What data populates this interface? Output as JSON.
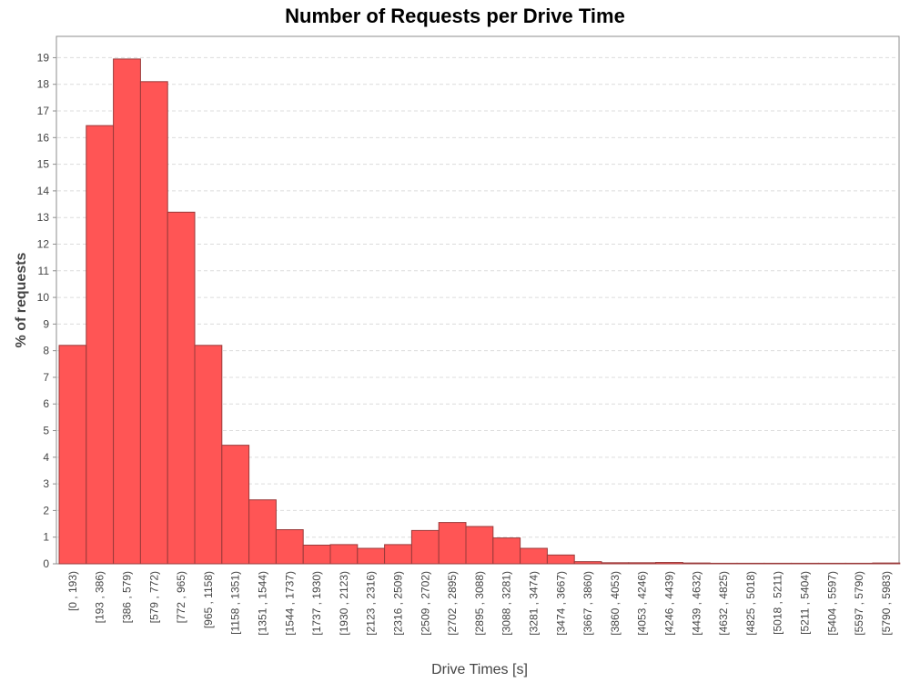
{
  "chart_data": {
    "type": "bar",
    "title": "Number of Requests per Drive Time",
    "xlabel": "Drive Times [s]",
    "ylabel": "% of requests",
    "ylim": [
      0,
      19.8
    ],
    "yticks": [
      0,
      1,
      2,
      3,
      4,
      5,
      6,
      7,
      8,
      9,
      10,
      11,
      12,
      13,
      14,
      15,
      16,
      17,
      18,
      19
    ],
    "grid": true,
    "legend": "none",
    "bar_color": "#ff5555",
    "bar_edge_color": "#9a3a3a",
    "categories": [
      "[0 , 193)",
      "[193 , 386)",
      "[386 , 579)",
      "[579 , 772)",
      "[772 , 965)",
      "[965 , 1158)",
      "[1158 , 1351)",
      "[1351 , 1544)",
      "[1544 , 1737)",
      "[1737 , 1930)",
      "[1930 , 2123)",
      "[2123 , 2316)",
      "[2316 , 2509)",
      "[2509 , 2702)",
      "[2702 , 2895)",
      "[2895 , 3088)",
      "[3088 , 3281)",
      "[3281 , 3474)",
      "[3474 , 3667)",
      "[3667 , 3860)",
      "[3860 , 4053)",
      "[4053 , 4246)",
      "[4246 , 4439)",
      "[4439 , 4632)",
      "[4632 , 4825)",
      "[4825 , 5018)",
      "[5018 , 5211)",
      "[5211 , 5404)",
      "[5404 , 5597)",
      "[5597 , 5790)",
      "[5790 , 5983)"
    ],
    "values": [
      8.2,
      16.45,
      18.95,
      18.1,
      13.2,
      8.2,
      4.45,
      2.4,
      1.28,
      0.7,
      0.72,
      0.58,
      0.72,
      1.25,
      1.55,
      1.4,
      0.97,
      0.58,
      0.33,
      0.08,
      0.04,
      0.04,
      0.05,
      0.03,
      0.02,
      0.02,
      0.02,
      0.02,
      0.02,
      0.02,
      0.03
    ]
  }
}
